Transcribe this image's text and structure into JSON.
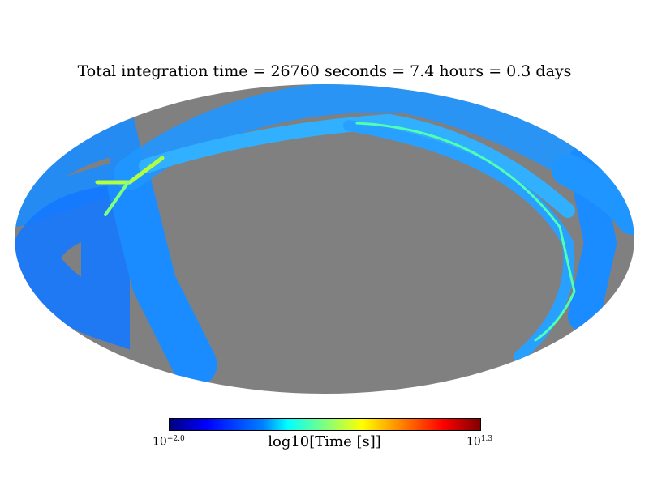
{
  "chart_data": {
    "type": "heatmap",
    "projection": "mollweide",
    "title": "Total integration time = 26760 seconds = 7.4 hours = 0.3 days",
    "colorbar": {
      "label": "log10[Time [s]]",
      "min_label_base": "10",
      "min_label_exp": "−2.0",
      "max_label_base": "10",
      "max_label_exp": "1.3",
      "range": [
        -2.0,
        1.3
      ],
      "colormap": "jet"
    },
    "background_color": "#808080"
  }
}
